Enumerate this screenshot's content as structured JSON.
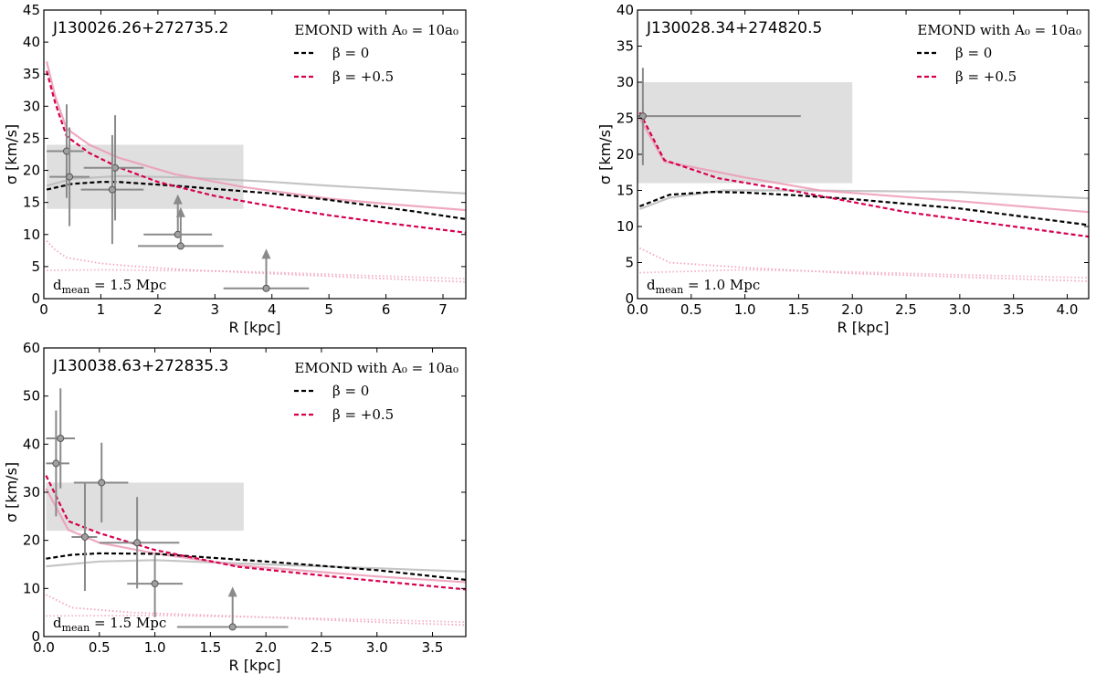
{
  "chart_data": [
    {
      "type": "line",
      "title": "J130026.26+272735.2",
      "xlabel": "R [kpc]",
      "ylabel": "σ [km/s]",
      "xlim": [
        0,
        7.4
      ],
      "ylim": [
        0,
        45
      ],
      "xticks": [
        0,
        1,
        2,
        3,
        4,
        5,
        6,
        7
      ],
      "xtick_labels": [
        "0",
        "1",
        "2",
        "3",
        "4",
        "5",
        "6",
        "7"
      ],
      "yticks": [
        0,
        5,
        10,
        15,
        20,
        25,
        30,
        35,
        40,
        45
      ],
      "ytick_labels": [
        "0",
        "5",
        "10",
        "15",
        "20",
        "25",
        "30",
        "35",
        "40",
        "45"
      ],
      "legend": {
        "header": "EMOND with A₀ = 10a₀",
        "entries": [
          "β = 0",
          "β = +0.5"
        ],
        "placement": "top-right"
      },
      "annotation": {
        "var": "d",
        "sub": "mean",
        "text": " = 1.5 Mpc"
      },
      "shaded_band": {
        "x": [
          0.05,
          3.5
        ],
        "y": [
          14,
          24
        ]
      },
      "series": [
        {
          "name": "β = 0",
          "style": "dashed",
          "color": "#000000",
          "x": [
            0.05,
            0.5,
            1,
            1.3,
            2.3,
            3,
            4,
            5,
            5.5,
            6.5,
            7.4
          ],
          "y": [
            17,
            17.9,
            18.2,
            18.2,
            17.6,
            17.1,
            16.4,
            15.4,
            14.8,
            13.6,
            12.4
          ]
        },
        {
          "name": "β = +0.5",
          "style": "dashed",
          "color": "#d6004f",
          "x": [
            0.05,
            0.2,
            0.4,
            0.8,
            1.3,
            2,
            3,
            3.5,
            4,
            5,
            6,
            7.4
          ],
          "y": [
            35.5,
            30.5,
            25.3,
            22.7,
            20.5,
            18.2,
            16,
            15.2,
            14.4,
            13,
            11.8,
            10.3
          ]
        },
        {
          "name": "pink solid",
          "style": "solid",
          "color": "#ec9bb5",
          "x": [
            0.05,
            0.2,
            0.4,
            0.8,
            1.3,
            2.3,
            3.5,
            5,
            6,
            7.4
          ],
          "y": [
            37,
            31.5,
            26.5,
            24,
            22,
            19.4,
            17.4,
            15.6,
            14.8,
            13.8
          ]
        },
        {
          "name": "gray solid",
          "style": "solid",
          "color": "#bbbbbb",
          "x": [
            0.05,
            0.5,
            1.3,
            2.5,
            4,
            5,
            6,
            7.4
          ],
          "y": [
            17.6,
            18.7,
            19.1,
            18.9,
            18.2,
            17.6,
            17.1,
            16.4
          ]
        },
        {
          "name": "pink dotted",
          "style": "dotted",
          "color": "#f29bb8",
          "x": [
            0.05,
            0.2,
            0.4,
            1,
            1.5,
            2.5,
            4,
            5,
            6,
            7.4
          ],
          "y": [
            9,
            7.6,
            6.4,
            5.5,
            5.1,
            4.5,
            3.9,
            3.5,
            3.1,
            2.6
          ]
        },
        {
          "name": "pink dotted flat",
          "style": "dotted",
          "color": "#f2a8c0",
          "x": [
            0.05,
            1,
            2,
            3,
            4,
            5,
            6,
            7.4
          ],
          "y": [
            4.4,
            4.5,
            4.4,
            4.3,
            4.1,
            3.8,
            3.5,
            3.1
          ]
        }
      ],
      "points": [
        {
          "x": 0.4,
          "y": 23,
          "xerr": [
            0.05,
            0.7
          ],
          "yerr": [
            15.7,
            30.3
          ]
        },
        {
          "x": 0.45,
          "y": 19,
          "xerr": [
            0.1,
            0.8
          ],
          "yerr": [
            11.3,
            26.7
          ]
        },
        {
          "x": 1.25,
          "y": 20.4,
          "xerr": [
            0.7,
            1.75
          ],
          "yerr": [
            12.2,
            28.6
          ]
        },
        {
          "x": 1.2,
          "y": 17,
          "xerr": [
            0.65,
            1.75
          ],
          "yerr": [
            8.5,
            25.5
          ]
        },
        {
          "x": 2.35,
          "y": 10,
          "xerr": [
            1.75,
            2.95
          ],
          "lower_limit_to": 16
        },
        {
          "x": 2.4,
          "y": 8.2,
          "xerr": [
            1.65,
            3.15
          ],
          "lower_limit_to": 14
        },
        {
          "x": 3.9,
          "y": 1.6,
          "xerr": [
            3.15,
            4.65
          ],
          "lower_limit_to": 7.5
        }
      ]
    },
    {
      "type": "line",
      "title": "J130028.34+274820.5",
      "xlabel": "R [kpc]",
      "ylabel": "σ [km/s]",
      "xlim": [
        0,
        4.2
      ],
      "ylim": [
        0,
        40
      ],
      "xticks": [
        0,
        0.5,
        1,
        1.5,
        2,
        2.5,
        3,
        3.5,
        4
      ],
      "xtick_labels": [
        "0.0",
        "0.5",
        "1.0",
        "1.5",
        "2.0",
        "2.5",
        "3.0",
        "3.5",
        "4.0"
      ],
      "yticks": [
        0,
        5,
        10,
        15,
        20,
        25,
        30,
        35,
        40
      ],
      "ytick_labels": [
        "0",
        "5",
        "10",
        "15",
        "20",
        "25",
        "30",
        "35",
        "40"
      ],
      "legend": {
        "header": "EMOND with A₀ = 10a₀",
        "entries": [
          "β = 0",
          "β = +0.5"
        ],
        "placement": "top-right"
      },
      "annotation": {
        "var": "d",
        "sub": "mean",
        "text": " = 1.0 Mpc"
      },
      "shaded_band": {
        "x": [
          0.0,
          2.0
        ],
        "y": [
          16,
          30
        ]
      },
      "series": [
        {
          "name": "β = 0",
          "style": "dashed",
          "color": "#000000",
          "x": [
            0.02,
            0.3,
            0.7,
            1,
            1.5,
            2,
            3,
            4.2
          ],
          "y": [
            12.8,
            14.4,
            14.8,
            14.7,
            14.3,
            13.8,
            12.5,
            10.2
          ]
        },
        {
          "name": "β = +0.5",
          "style": "dashed",
          "color": "#d6004f",
          "x": [
            0.02,
            0.25,
            0.75,
            1.5,
            2.5,
            3.5,
            4.2
          ],
          "y": [
            25.8,
            19.2,
            16.7,
            14.8,
            12,
            10,
            8.6
          ]
        },
        {
          "name": "pink solid",
          "style": "solid",
          "color": "#ec9bb5",
          "x": [
            0.02,
            0.25,
            1,
            1.7,
            3,
            4.2
          ],
          "y": [
            25,
            19,
            16.8,
            15,
            13.5,
            12
          ]
        },
        {
          "name": "gray solid",
          "style": "solid",
          "color": "#bbbbbb",
          "x": [
            0.02,
            0.3,
            0.8,
            1.5,
            3,
            4.2
          ],
          "y": [
            12.4,
            14,
            15,
            15,
            14.8,
            13.9
          ]
        },
        {
          "name": "pink dotted",
          "style": "dotted",
          "color": "#f29bb8",
          "x": [
            0.02,
            0.3,
            1,
            2,
            3,
            4.2
          ],
          "y": [
            7,
            5,
            4.3,
            3.5,
            3,
            2.4
          ]
        },
        {
          "name": "pink dotted flat",
          "style": "dotted",
          "color": "#f2a8c0",
          "x": [
            0.02,
            1,
            2,
            3,
            4.2
          ],
          "y": [
            3.6,
            4,
            3.7,
            3.3,
            2.9
          ]
        }
      ],
      "points": [
        {
          "x": 0.05,
          "y": 25.3,
          "xerr": [
            0.0,
            1.52
          ],
          "yerr": [
            18.5,
            32
          ]
        }
      ]
    },
    {
      "type": "line",
      "title": "J130038.63+272835.3",
      "xlabel": "R [kpc]",
      "ylabel": "σ [km/s]",
      "xlim": [
        0,
        3.8
      ],
      "ylim": [
        0,
        60
      ],
      "xticks": [
        0,
        0.5,
        1,
        1.5,
        2,
        2.5,
        3,
        3.5
      ],
      "xtick_labels": [
        "0.0",
        "0.5",
        "1.0",
        "1.5",
        "2.0",
        "2.5",
        "3.0",
        "3.5"
      ],
      "yticks": [
        0,
        10,
        20,
        30,
        40,
        50,
        60
      ],
      "ytick_labels": [
        "0",
        "10",
        "20",
        "30",
        "40",
        "50",
        "60"
      ],
      "legend": {
        "header": "EMOND with A₀ = 10a₀",
        "entries": [
          "β = 0",
          "β = +0.5"
        ],
        "placement": "top-right"
      },
      "annotation": {
        "var": "d",
        "sub": "mean",
        "text": " = 1.5 Mpc"
      },
      "shaded_band": {
        "x": [
          0.02,
          1.8
        ],
        "y": [
          22,
          32
        ]
      },
      "series": [
        {
          "name": "β = 0",
          "style": "dashed",
          "color": "#000000",
          "x": [
            0.02,
            0.25,
            0.5,
            1,
            1.5,
            2,
            3,
            3.8
          ],
          "y": [
            16.2,
            17,
            17.3,
            17.2,
            16.4,
            15.6,
            13.8,
            11.8
          ]
        },
        {
          "name": "β = +0.5",
          "style": "dashed",
          "color": "#d6004f",
          "x": [
            0.02,
            0.22,
            0.5,
            1,
            1.75,
            2.8,
            3.8
          ],
          "y": [
            33.5,
            24,
            21.5,
            18,
            14.5,
            12,
            9.8
          ]
        },
        {
          "name": "pink solid",
          "style": "solid",
          "color": "#ec9bb5",
          "x": [
            0.02,
            0.22,
            0.5,
            1,
            1.75,
            3,
            3.8
          ],
          "y": [
            30.8,
            22.2,
            19.5,
            17.3,
            14.8,
            12.5,
            11.3
          ]
        },
        {
          "name": "gray solid",
          "style": "solid",
          "color": "#bbbbbb",
          "x": [
            0.02,
            0.5,
            1,
            2,
            3,
            3.8
          ],
          "y": [
            14.6,
            15.6,
            15.9,
            15,
            14.2,
            13.5
          ]
        },
        {
          "name": "pink dotted",
          "style": "dotted",
          "color": "#f29bb8",
          "x": [
            0.02,
            0.25,
            0.8,
            2,
            3,
            3.8
          ],
          "y": [
            8.7,
            6,
            5,
            4,
            3,
            2.4
          ]
        },
        {
          "name": "pink dotted flat",
          "style": "dotted",
          "color": "#f2a8c0",
          "x": [
            0.02,
            1,
            2,
            3,
            3.8
          ],
          "y": [
            4.3,
            4.4,
            4,
            3.5,
            3
          ]
        }
      ],
      "points": [
        {
          "x": 0.11,
          "y": 36,
          "xerr": [
            0.02,
            0.23
          ],
          "yerr": [
            25,
            47
          ]
        },
        {
          "x": 0.15,
          "y": 41.2,
          "xerr": [
            0.02,
            0.28
          ],
          "yerr": [
            30.8,
            51.6
          ]
        },
        {
          "x": 0.37,
          "y": 20.7,
          "xerr": [
            0.25,
            0.48
          ],
          "yerr": [
            9.5,
            32
          ]
        },
        {
          "x": 0.52,
          "y": 32,
          "xerr": [
            0.27,
            0.76
          ],
          "yerr": [
            23.7,
            40.3
          ]
        },
        {
          "x": 0.84,
          "y": 19.5,
          "xerr": [
            0.5,
            1.22
          ],
          "yerr": [
            10,
            29
          ]
        },
        {
          "x": 1.0,
          "y": 11,
          "xerr": [
            0.75,
            1.25
          ],
          "yerr": [
            4,
            17
          ]
        },
        {
          "x": 1.7,
          "y": 2,
          "xerr": [
            1.2,
            2.2
          ],
          "lower_limit_to": 10
        }
      ]
    }
  ]
}
